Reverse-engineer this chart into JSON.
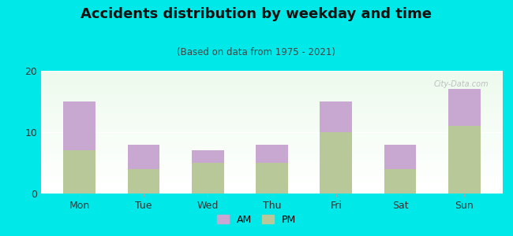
{
  "categories": [
    "Mon",
    "Tue",
    "Wed",
    "Thu",
    "Fri",
    "Sat",
    "Sun"
  ],
  "pm_values": [
    7,
    4,
    5,
    5,
    10,
    4,
    11
  ],
  "am_values": [
    8,
    4,
    2,
    3,
    5,
    4,
    6
  ],
  "am_color": "#c8a8d0",
  "pm_color": "#b8c898",
  "title": "Accidents distribution by weekday and time",
  "subtitle": "(Based on data from 1975 - 2021)",
  "ylim": [
    0,
    20
  ],
  "yticks": [
    0,
    10,
    20
  ],
  "background_color": "#00e8e8",
  "watermark": "City-Data.com",
  "bar_width": 0.5,
  "legend_am": "AM",
  "legend_pm": "PM"
}
